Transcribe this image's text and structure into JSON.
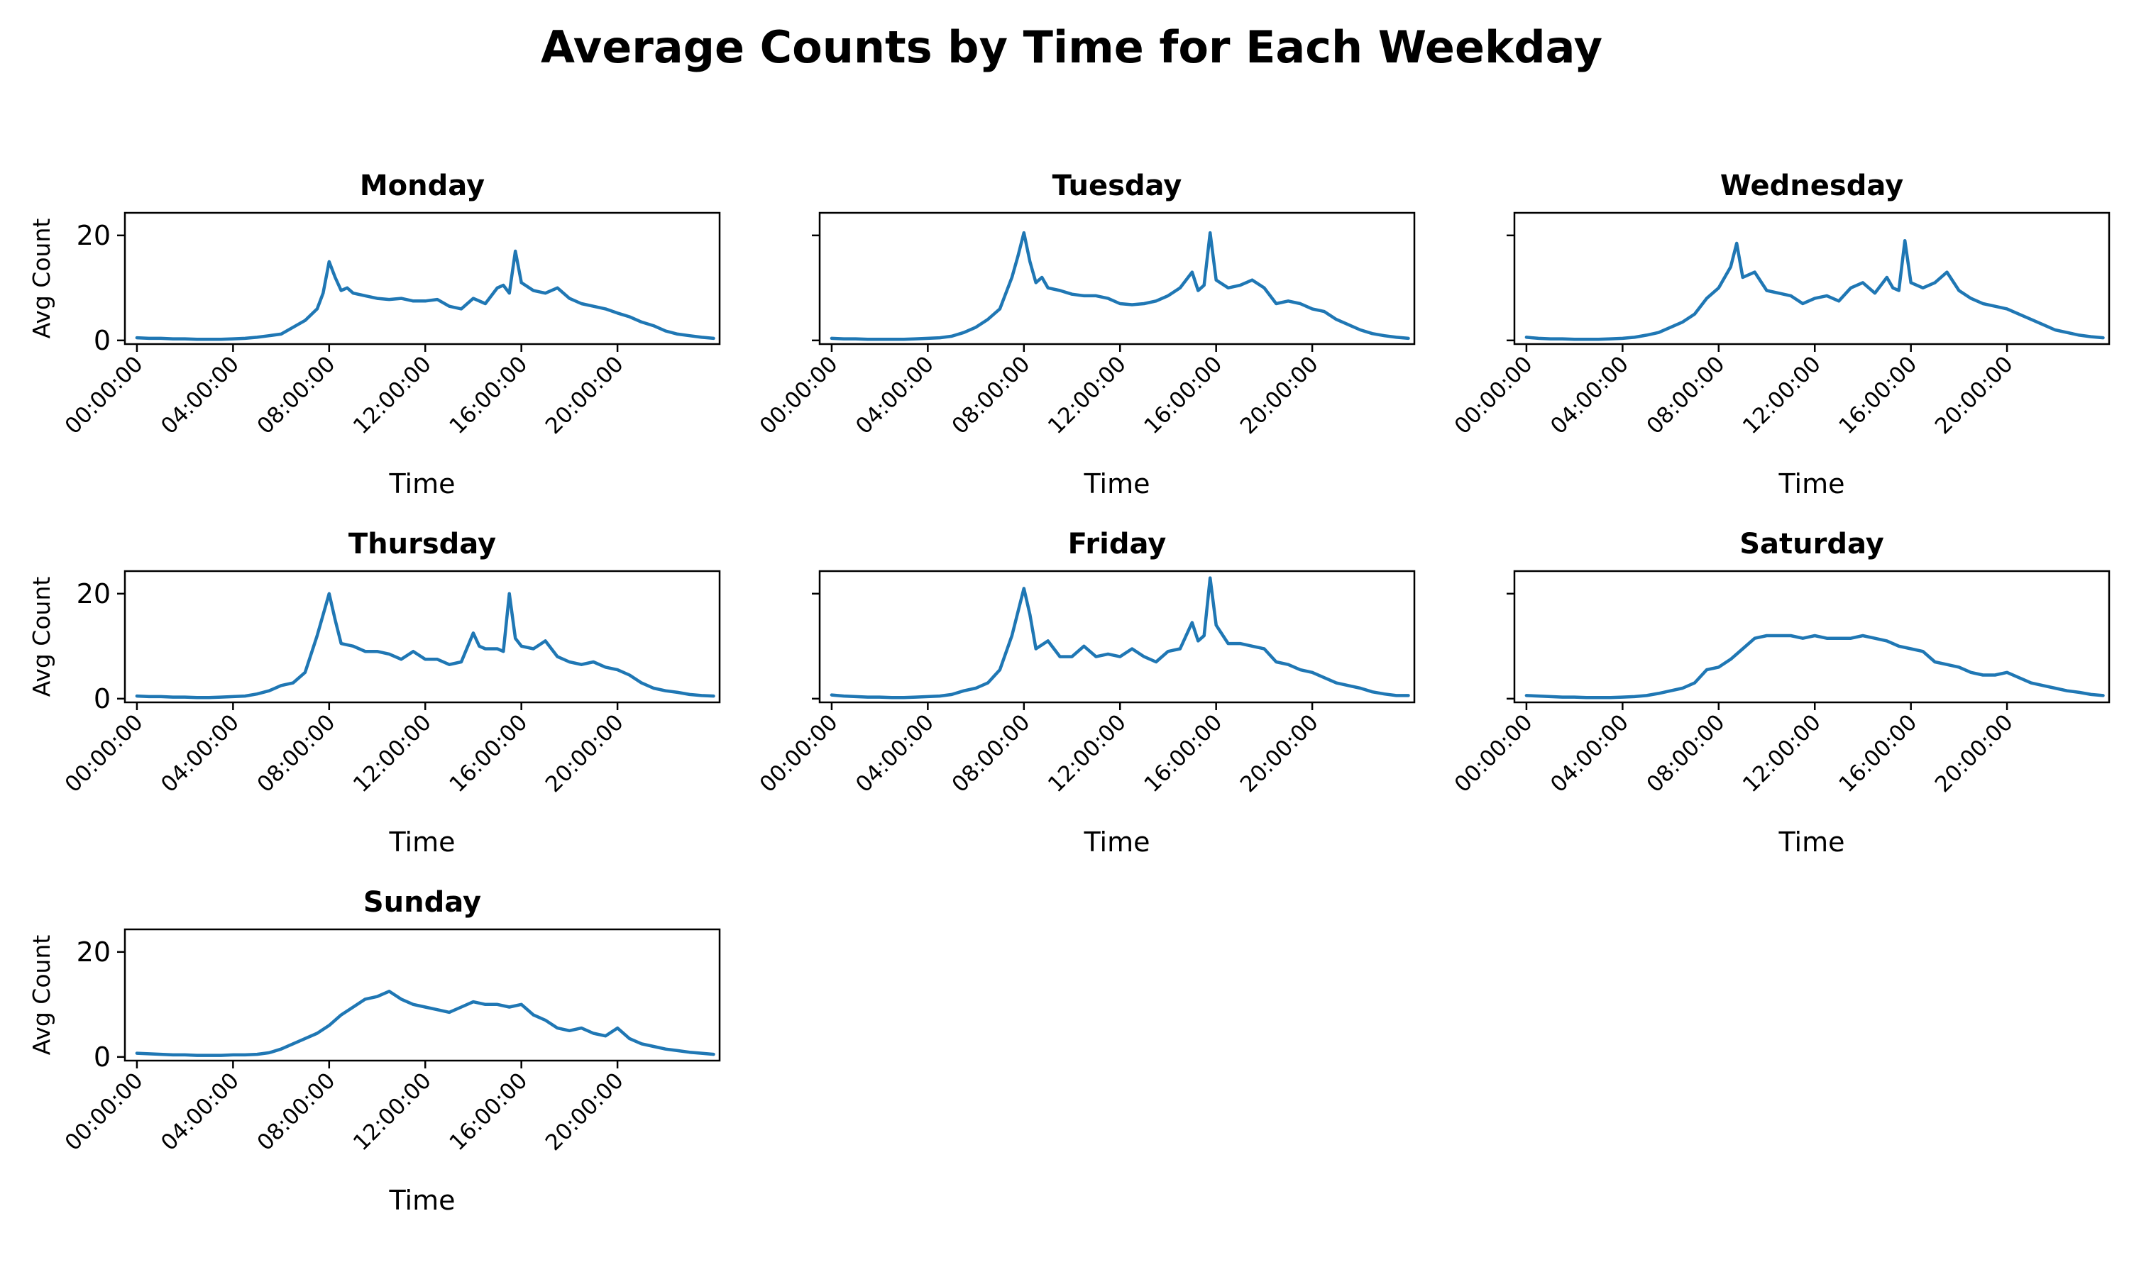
{
  "figure": {
    "title": "Average Counts by Time for Each Weekday",
    "line_color": "#1f77b4"
  },
  "chart_data": [
    {
      "type": "line",
      "title": "Monday",
      "xlabel": "Time",
      "ylabel": "Avg Count",
      "xlim": [
        -0.5,
        24.25
      ],
      "ylim": [
        -0.7,
        24.3
      ],
      "x_ticks": [
        0,
        4,
        8,
        12,
        16,
        20
      ],
      "x_tick_labels": [
        "00:00:00",
        "04:00:00",
        "08:00:00",
        "12:00:00",
        "16:00:00",
        "20:00:00"
      ],
      "y_ticks": [
        0,
        20
      ],
      "y_tick_labels": [
        "0",
        "20"
      ],
      "grid": false,
      "series": [
        {
          "x": [
            0,
            0.5,
            1,
            1.5,
            2,
            2.5,
            3,
            3.5,
            4,
            4.5,
            5,
            5.5,
            6,
            6.5,
            7,
            7.5,
            7.75,
            8,
            8.25,
            8.5,
            8.75,
            9,
            9.5,
            10,
            10.5,
            11,
            11.5,
            12,
            12.5,
            13,
            13.5,
            14,
            14.5,
            15,
            15.25,
            15.5,
            15.75,
            16,
            16.5,
            17,
            17.5,
            18,
            18.5,
            19,
            19.5,
            20,
            20.5,
            21,
            21.5,
            22,
            22.5,
            23,
            23.5,
            24
          ],
          "y": [
            0.5,
            0.4,
            0.4,
            0.3,
            0.3,
            0.2,
            0.2,
            0.2,
            0.3,
            0.4,
            0.6,
            0.9,
            1.2,
            2.5,
            3.8,
            6,
            9,
            15,
            12,
            9.5,
            10,
            9,
            8.5,
            8,
            7.8,
            8,
            7.5,
            7.5,
            7.8,
            6.5,
            6,
            8,
            7,
            10,
            10.5,
            9,
            17,
            11,
            9.5,
            9,
            10,
            8,
            7,
            6.5,
            6,
            5.2,
            4.5,
            3.5,
            2.8,
            1.8,
            1.2,
            0.9,
            0.6,
            0.4
          ]
        }
      ]
    },
    {
      "type": "line",
      "title": "Tuesday",
      "xlabel": "Time",
      "ylabel": "",
      "xlim": [
        -0.5,
        24.25
      ],
      "ylim": [
        -0.7,
        24.3
      ],
      "x_ticks": [
        0,
        4,
        8,
        12,
        16,
        20
      ],
      "x_tick_labels": [
        "00:00:00",
        "04:00:00",
        "08:00:00",
        "12:00:00",
        "16:00:00",
        "20:00:00"
      ],
      "y_ticks": [
        0,
        20
      ],
      "y_tick_labels": [
        "",
        ""
      ],
      "grid": false,
      "series": [
        {
          "x": [
            0,
            0.5,
            1,
            1.5,
            2,
            2.5,
            3,
            3.5,
            4,
            4.5,
            5,
            5.5,
            6,
            6.5,
            7,
            7.5,
            7.75,
            8,
            8.25,
            8.5,
            8.75,
            9,
            9.5,
            10,
            10.5,
            11,
            11.5,
            12,
            12.5,
            13,
            13.5,
            14,
            14.5,
            15,
            15.25,
            15.5,
            15.75,
            16,
            16.5,
            17,
            17.5,
            18,
            18.5,
            19,
            19.5,
            20,
            20.5,
            21,
            21.5,
            22,
            22.5,
            23,
            23.5,
            24
          ],
          "y": [
            0.4,
            0.3,
            0.3,
            0.2,
            0.2,
            0.2,
            0.2,
            0.3,
            0.4,
            0.5,
            0.8,
            1.5,
            2.5,
            4,
            6,
            12,
            16,
            20.5,
            15,
            11,
            12,
            10,
            9.5,
            8.8,
            8.5,
            8.5,
            8,
            7,
            6.8,
            7,
            7.5,
            8.5,
            10,
            13,
            9.5,
            10.5,
            20.5,
            11.5,
            10,
            10.5,
            11.5,
            10,
            7,
            7.5,
            7,
            6,
            5.5,
            4,
            3,
            2,
            1.3,
            0.9,
            0.6,
            0.4
          ]
        }
      ]
    },
    {
      "type": "line",
      "title": "Wednesday",
      "xlabel": "Time",
      "ylabel": "",
      "xlim": [
        -0.5,
        24.25
      ],
      "ylim": [
        -0.7,
        24.3
      ],
      "x_ticks": [
        0,
        4,
        8,
        12,
        16,
        20
      ],
      "x_tick_labels": [
        "00:00:00",
        "04:00:00",
        "08:00:00",
        "12:00:00",
        "16:00:00",
        "20:00:00"
      ],
      "y_ticks": [
        0,
        20
      ],
      "y_tick_labels": [
        "",
        ""
      ],
      "grid": false,
      "series": [
        {
          "x": [
            0,
            0.5,
            1,
            1.5,
            2,
            2.5,
            3,
            3.5,
            4,
            4.5,
            5,
            5.5,
            6,
            6.5,
            7,
            7.5,
            8,
            8.5,
            8.75,
            9,
            9.5,
            10,
            10.5,
            11,
            11.5,
            12,
            12.5,
            13,
            13.5,
            14,
            14.5,
            15,
            15.25,
            15.5,
            15.75,
            16,
            16.5,
            17,
            17.5,
            18,
            18.5,
            19,
            19.5,
            20,
            20.5,
            21,
            21.5,
            22,
            22.5,
            23,
            23.5,
            24
          ],
          "y": [
            0.6,
            0.4,
            0.3,
            0.3,
            0.2,
            0.2,
            0.2,
            0.3,
            0.4,
            0.6,
            1,
            1.5,
            2.5,
            3.5,
            5,
            8,
            10,
            14,
            18.5,
            12,
            13,
            9.5,
            9,
            8.5,
            7,
            8,
            8.5,
            7.5,
            10,
            11,
            9,
            12,
            10,
            9.5,
            19,
            11,
            10,
            11,
            13,
            9.5,
            8,
            7,
            6.5,
            6,
            5,
            4,
            3,
            2,
            1.5,
            1,
            0.7,
            0.5
          ]
        }
      ]
    },
    {
      "type": "line",
      "title": "Thursday",
      "xlabel": "Time",
      "ylabel": "Avg Count",
      "xlim": [
        -0.5,
        24.25
      ],
      "ylim": [
        -0.7,
        24.3
      ],
      "x_ticks": [
        0,
        4,
        8,
        12,
        16,
        20
      ],
      "x_tick_labels": [
        "00:00:00",
        "04:00:00",
        "08:00:00",
        "12:00:00",
        "16:00:00",
        "20:00:00"
      ],
      "y_ticks": [
        0,
        20
      ],
      "y_tick_labels": [
        "0",
        "20"
      ],
      "grid": false,
      "series": [
        {
          "x": [
            0,
            0.5,
            1,
            1.5,
            2,
            2.5,
            3,
            3.5,
            4,
            4.5,
            5,
            5.5,
            6,
            6.5,
            7,
            7.5,
            8,
            8.25,
            8.5,
            9,
            9.5,
            10,
            10.5,
            11,
            11.5,
            12,
            12.5,
            13,
            13.5,
            14,
            14.25,
            14.5,
            15,
            15.25,
            15.5,
            15.75,
            16,
            16.5,
            17,
            17.5,
            18,
            18.5,
            19,
            19.5,
            20,
            20.5,
            21,
            21.5,
            22,
            22.5,
            23,
            23.5,
            24
          ],
          "y": [
            0.5,
            0.4,
            0.4,
            0.3,
            0.3,
            0.2,
            0.2,
            0.3,
            0.4,
            0.5,
            0.9,
            1.5,
            2.5,
            3,
            5,
            12,
            20,
            15,
            10.5,
            10,
            9,
            9,
            8.5,
            7.5,
            9,
            7.5,
            7.5,
            6.5,
            7,
            12.5,
            10,
            9.5,
            9.5,
            9,
            20,
            11.5,
            10,
            9.5,
            11,
            8,
            7,
            6.5,
            7,
            6,
            5.5,
            4.5,
            3,
            2,
            1.5,
            1.2,
            0.8,
            0.6,
            0.5
          ]
        }
      ]
    },
    {
      "type": "line",
      "title": "Friday",
      "xlabel": "Time",
      "ylabel": "",
      "xlim": [
        -0.5,
        24.25
      ],
      "ylim": [
        -0.7,
        24.3
      ],
      "x_ticks": [
        0,
        4,
        8,
        12,
        16,
        20
      ],
      "x_tick_labels": [
        "00:00:00",
        "04:00:00",
        "08:00:00",
        "12:00:00",
        "16:00:00",
        "20:00:00"
      ],
      "y_ticks": [
        0,
        20
      ],
      "y_tick_labels": [
        "",
        ""
      ],
      "grid": false,
      "series": [
        {
          "x": [
            0,
            0.5,
            1,
            1.5,
            2,
            2.5,
            3,
            3.5,
            4,
            4.5,
            5,
            5.5,
            6,
            6.5,
            7,
            7.5,
            8,
            8.25,
            8.5,
            9,
            9.5,
            10,
            10.5,
            11,
            11.5,
            12,
            12.5,
            13,
            13.5,
            14,
            14.5,
            15,
            15.25,
            15.5,
            15.75,
            16,
            16.5,
            17,
            17.5,
            18,
            18.5,
            19,
            19.5,
            20,
            20.5,
            21,
            21.5,
            22,
            22.5,
            23,
            23.5,
            24
          ],
          "y": [
            0.7,
            0.5,
            0.4,
            0.3,
            0.3,
            0.2,
            0.2,
            0.3,
            0.4,
            0.5,
            0.8,
            1.5,
            2,
            3,
            5.5,
            12,
            21,
            16,
            9.5,
            11,
            8,
            8,
            10,
            8,
            8.5,
            8,
            9.5,
            8,
            7,
            9,
            9.5,
            14.5,
            11,
            12,
            23,
            14,
            10.5,
            10.5,
            10,
            9.5,
            7,
            6.5,
            5.5,
            5,
            4,
            3,
            2.5,
            2,
            1.3,
            0.9,
            0.6,
            0.6
          ]
        }
      ]
    },
    {
      "type": "line",
      "title": "Saturday",
      "xlabel": "Time",
      "ylabel": "",
      "xlim": [
        -0.5,
        24.25
      ],
      "ylim": [
        -0.7,
        24.3
      ],
      "x_ticks": [
        0,
        4,
        8,
        12,
        16,
        20
      ],
      "x_tick_labels": [
        "00:00:00",
        "04:00:00",
        "08:00:00",
        "12:00:00",
        "16:00:00",
        "20:00:00"
      ],
      "y_ticks": [
        0,
        20
      ],
      "y_tick_labels": [
        "",
        ""
      ],
      "grid": false,
      "series": [
        {
          "x": [
            0,
            0.5,
            1,
            1.5,
            2,
            2.5,
            3,
            3.5,
            4,
            4.5,
            5,
            5.5,
            6,
            6.5,
            7,
            7.5,
            8,
            8.5,
            9,
            9.5,
            10,
            10.5,
            11,
            11.5,
            12,
            12.5,
            13,
            13.5,
            14,
            14.5,
            15,
            15.5,
            16,
            16.5,
            17,
            17.5,
            18,
            18.5,
            19,
            19.5,
            20,
            20.5,
            21,
            21.5,
            22,
            22.5,
            23,
            23.5,
            24
          ],
          "y": [
            0.6,
            0.5,
            0.4,
            0.3,
            0.3,
            0.2,
            0.2,
            0.2,
            0.3,
            0.4,
            0.6,
            1,
            1.5,
            2,
            3,
            5.5,
            6,
            7.5,
            9.5,
            11.5,
            12,
            12,
            12,
            11.5,
            12,
            11.5,
            11.5,
            11.5,
            12,
            11.5,
            11,
            10,
            9.5,
            9,
            7,
            6.5,
            6,
            5,
            4.5,
            4.5,
            5,
            4,
            3,
            2.5,
            2,
            1.5,
            1.2,
            0.8,
            0.6
          ]
        }
      ]
    },
    {
      "type": "line",
      "title": "Sunday",
      "xlabel": "Time",
      "ylabel": "Avg Count",
      "xlim": [
        -0.5,
        24.25
      ],
      "ylim": [
        -0.7,
        24.3
      ],
      "x_ticks": [
        0,
        4,
        8,
        12,
        16,
        20
      ],
      "x_tick_labels": [
        "00:00:00",
        "04:00:00",
        "08:00:00",
        "12:00:00",
        "16:00:00",
        "20:00:00"
      ],
      "y_ticks": [
        0,
        20
      ],
      "y_tick_labels": [
        "0",
        "20"
      ],
      "grid": false,
      "series": [
        {
          "x": [
            0,
            0.5,
            1,
            1.5,
            2,
            2.5,
            3,
            3.5,
            4,
            4.5,
            5,
            5.5,
            6,
            6.5,
            7,
            7.5,
            8,
            8.5,
            9,
            9.5,
            10,
            10.5,
            11,
            11.5,
            12,
            12.5,
            13,
            13.5,
            14,
            14.5,
            15,
            15.5,
            16,
            16.5,
            17,
            17.5,
            18,
            18.5,
            19,
            19.5,
            20,
            20.5,
            21,
            21.5,
            22,
            22.5,
            23,
            23.5,
            24
          ],
          "y": [
            0.7,
            0.6,
            0.5,
            0.4,
            0.4,
            0.3,
            0.3,
            0.3,
            0.4,
            0.4,
            0.5,
            0.8,
            1.5,
            2.5,
            3.5,
            4.5,
            6,
            8,
            9.5,
            11,
            11.5,
            12.5,
            11,
            10,
            9.5,
            9,
            8.5,
            9.5,
            10.5,
            10,
            10,
            9.5,
            10,
            8,
            7,
            5.5,
            5,
            5.5,
            4.5,
            4,
            5.5,
            3.5,
            2.5,
            2,
            1.5,
            1.2,
            0.9,
            0.7,
            0.5
          ]
        }
      ]
    }
  ]
}
